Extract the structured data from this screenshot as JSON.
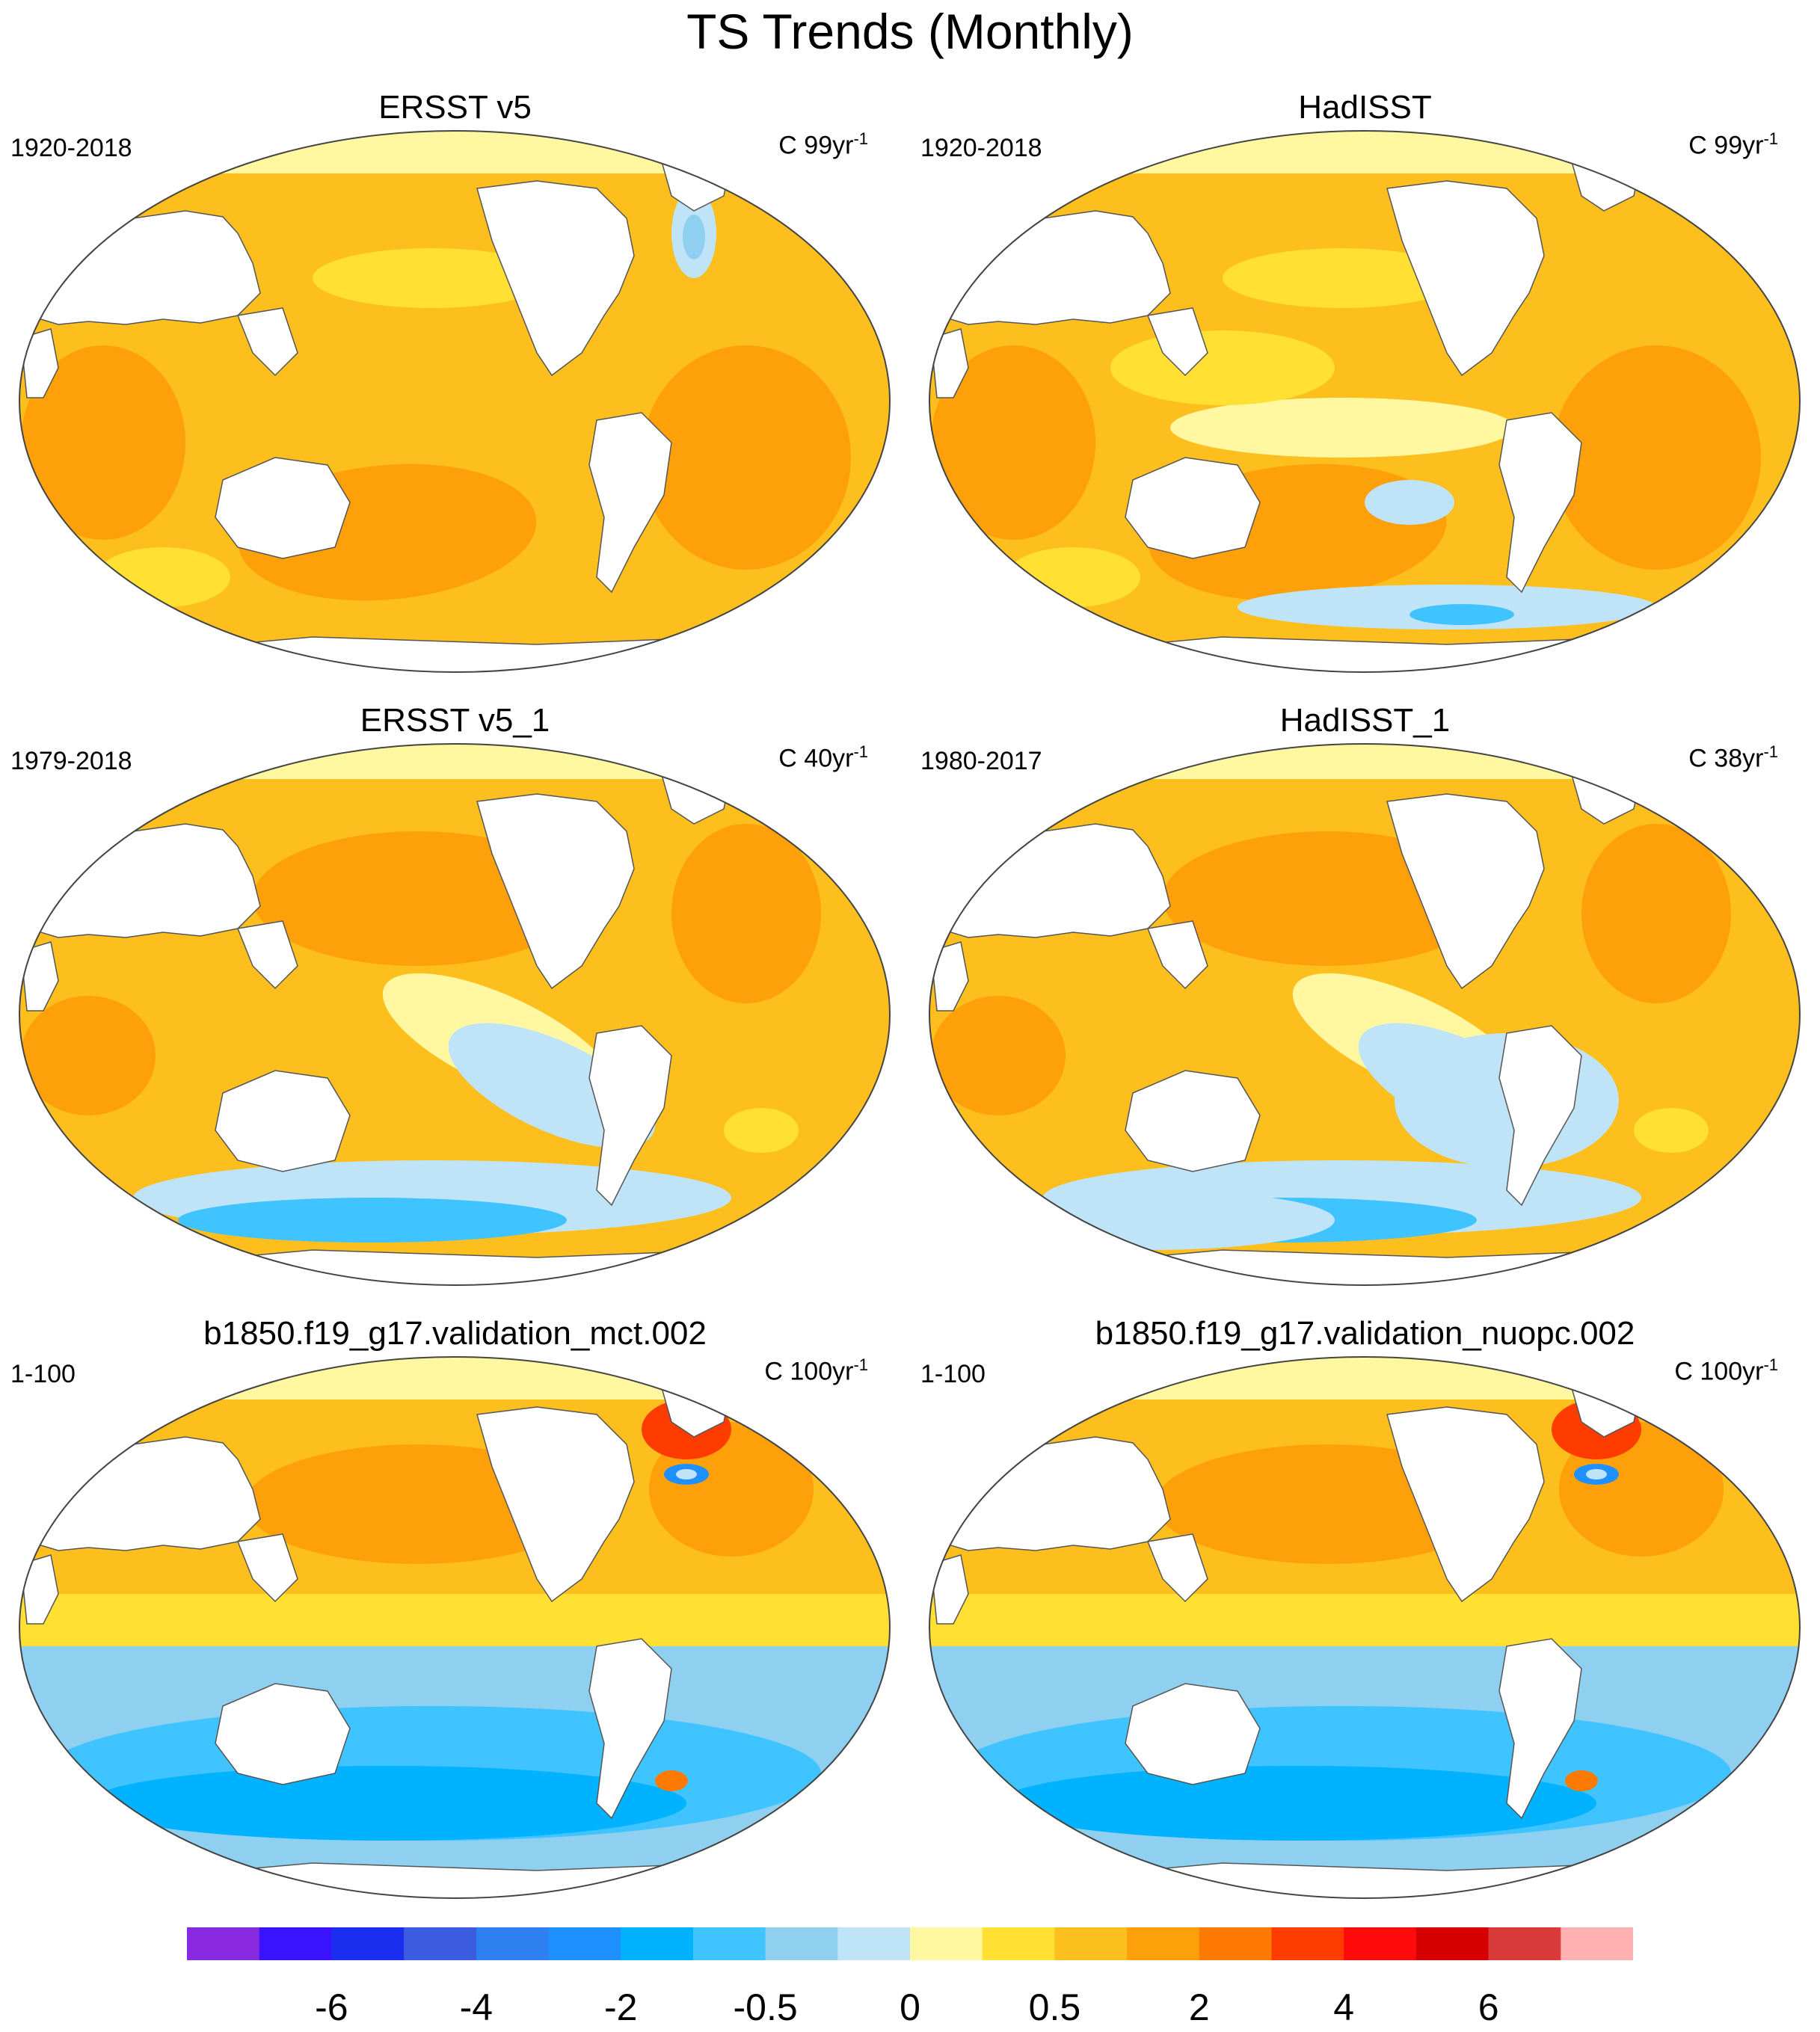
{
  "figure": {
    "title": "TS Trends (Monthly)"
  },
  "panels": [
    {
      "title": "ERSST v5",
      "period": "1920-2018",
      "units": "C 99yr",
      "units_exp": "-1",
      "pattern": "warm_wide"
    },
    {
      "title": "HadISST",
      "period": "1920-2018",
      "units": "C 99yr",
      "units_exp": "-1",
      "pattern": "warm_patchy"
    },
    {
      "title": "ERSST v5_1",
      "period": "1979-2018",
      "units": "C 40yr",
      "units_exp": "-1",
      "pattern": "recent"
    },
    {
      "title": "HadISST_1",
      "period": "1980-2017",
      "units": "C 38yr",
      "units_exp": "-1",
      "pattern": "recent_patchy"
    },
    {
      "title": "b1850.f19_g17.validation_mct.002",
      "period": "1-100",
      "units": "C 100yr",
      "units_exp": "-1",
      "pattern": "model"
    },
    {
      "title": "b1850.f19_g17.validation_nuopc.002",
      "period": "1-100",
      "units": "C 100yr",
      "units_exp": "-1",
      "pattern": "model"
    }
  ],
  "colorbar": {
    "colors": [
      "#8a2be2",
      "#3a14ff",
      "#1a2ef0",
      "#3b5be0",
      "#2e7ff0",
      "#1e90ff",
      "#00b2ff",
      "#40c4ff",
      "#8fd0f0",
      "#bfe4f7",
      "#fff8a0",
      "#ffe033",
      "#fdbf1e",
      "#fea00a",
      "#ff7a00",
      "#ff3c00",
      "#ff0a0a",
      "#d60000",
      "#d93a3a",
      "#ffb0b0"
    ],
    "labels": [
      {
        "text": "-6",
        "index": 2
      },
      {
        "text": "-4",
        "index": 4
      },
      {
        "text": "-2",
        "index": 6
      },
      {
        "text": "-0.5",
        "index": 8
      },
      {
        "text": "0",
        "index": 10
      },
      {
        "text": "0.5",
        "index": 12
      },
      {
        "text": "2",
        "index": 14
      },
      {
        "text": "4",
        "index": 16
      },
      {
        "text": "6",
        "index": 18
      }
    ]
  }
}
